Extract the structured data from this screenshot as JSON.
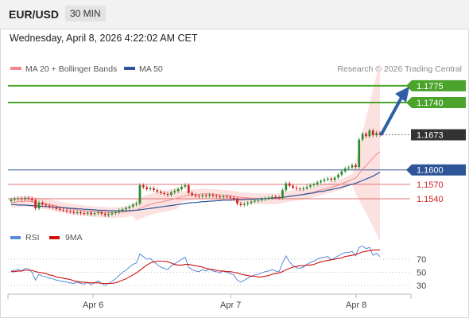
{
  "header": {
    "symbol": "EUR/USD",
    "timeframe": "30 MIN"
  },
  "datetime": "Wednesday, April 8, 2026 4:22:02 AM CET",
  "legend": {
    "ma20": {
      "label": "MA 20 + Bollinger Bands",
      "color": "#f08a8a"
    },
    "ma50": {
      "label": "MA 50",
      "color": "#2e5597"
    }
  },
  "credit": "Research © 2026 Trading Central",
  "colors": {
    "up": "#2a8a2a",
    "down": "#cc2222",
    "target": "#4aa32a",
    "pivot": "#2e5597",
    "support": "#e07070",
    "last": "#333333",
    "arrow": "#2e5fa5",
    "rsi": "#5b8ad6",
    "rsi_ma": "#d01010"
  },
  "chart_data": [
    {
      "type": "candlestick",
      "x_ticks": [
        "Apr 6",
        "Apr 7",
        "Apr 8"
      ],
      "levels": [
        {
          "value": 1.1775,
          "label": "1.1775",
          "kind": "target"
        },
        {
          "value": 1.174,
          "label": "1.1740",
          "kind": "target"
        },
        {
          "value": 1.1673,
          "label": "1.1673",
          "kind": "last"
        },
        {
          "value": 1.16,
          "label": "1.1600",
          "kind": "pivot"
        },
        {
          "value": 1.157,
          "label": "1.1570",
          "kind": "support"
        },
        {
          "value": 1.154,
          "label": "1.1540",
          "kind": "support"
        }
      ],
      "ylim": [
        1.15,
        1.1795
      ],
      "close": [
        1.1538,
        1.154,
        1.1541,
        1.1539,
        1.1542,
        1.154,
        1.1537,
        1.152,
        1.1532,
        1.1528,
        1.1526,
        1.1524,
        1.1522,
        1.1519,
        1.1517,
        1.1516,
        1.1514,
        1.1513,
        1.1511,
        1.1512,
        1.151,
        1.1509,
        1.1511,
        1.1508,
        1.151,
        1.1512,
        1.1509,
        1.1506,
        1.1508,
        1.151,
        1.1512,
        1.1516,
        1.1518,
        1.1521,
        1.1524,
        1.1528,
        1.153,
        1.1568,
        1.1564,
        1.156,
        1.1562,
        1.1558,
        1.1555,
        1.1552,
        1.155,
        1.1548,
        1.1553,
        1.1556,
        1.156,
        1.1565,
        1.1568,
        1.1552,
        1.1548,
        1.1546,
        1.1545,
        1.1547,
        1.1546,
        1.1548,
        1.1546,
        1.1545,
        1.1543,
        1.1545,
        1.1544,
        1.1542,
        1.154,
        1.153,
        1.1527,
        1.1529,
        1.1531,
        1.1534,
        1.1536,
        1.1537,
        1.1539,
        1.1541,
        1.1542,
        1.1544,
        1.1543,
        1.1542,
        1.1558,
        1.1572,
        1.1567,
        1.1563,
        1.1561,
        1.156,
        1.1562,
        1.1565,
        1.1568,
        1.157,
        1.1574,
        1.1577,
        1.158,
        1.1582,
        1.1579,
        1.1584,
        1.159,
        1.1597,
        1.1603,
        1.1605,
        1.161,
        1.1606,
        1.1663,
        1.1675,
        1.167,
        1.1682,
        1.1672,
        1.1677,
        1.1673
      ],
      "ma20": [
        1.1532,
        1.1533,
        1.1534,
        1.1534,
        1.1535,
        1.1535,
        1.1534,
        1.1532,
        1.1531,
        1.153,
        1.1529,
        1.1528,
        1.1526,
        1.1525,
        1.1523,
        1.1522,
        1.152,
        1.1519,
        1.1518,
        1.1517,
        1.1516,
        1.1515,
        1.1514,
        1.1514,
        1.1513,
        1.1513,
        1.1512,
        1.1512,
        1.1511,
        1.1511,
        1.1511,
        1.1512,
        1.1512,
        1.1513,
        1.1514,
        1.1515,
        1.1516,
        1.152,
        1.1523,
        1.1526,
        1.1528,
        1.153,
        1.1532,
        1.1533,
        1.1535,
        1.1536,
        1.1538,
        1.154,
        1.1542,
        1.1544,
        1.1546,
        1.1547,
        1.1548,
        1.1549,
        1.1549,
        1.155,
        1.155,
        1.155,
        1.1549,
        1.1549,
        1.1548,
        1.1547,
        1.1547,
        1.1546,
        1.1545,
        1.1544,
        1.1543,
        1.1542,
        1.1542,
        1.1541,
        1.1541,
        1.154,
        1.154,
        1.154,
        1.154,
        1.154,
        1.154,
        1.1541,
        1.1542,
        1.1544,
        1.1545,
        1.1546,
        1.1547,
        1.1548,
        1.1549,
        1.1551,
        1.1552,
        1.1554,
        1.1556,
        1.1558,
        1.156,
        1.1562,
        1.1564,
        1.1566,
        1.1568,
        1.1571,
        1.1574,
        1.1577,
        1.158,
        1.1583,
        1.1592,
        1.1601,
        1.1609,
        1.1617,
        1.1625,
        1.1632,
        1.1638
      ],
      "ma50": [
        1.1528,
        1.1528,
        1.1527,
        1.1527,
        1.1527,
        1.1526,
        1.1526,
        1.1525,
        1.1525,
        1.1524,
        1.1524,
        1.1523,
        1.1523,
        1.1522,
        1.1522,
        1.1521,
        1.1521,
        1.152,
        1.152,
        1.1519,
        1.1519,
        1.1518,
        1.1518,
        1.1517,
        1.1517,
        1.1516,
        1.1516,
        1.1516,
        1.1515,
        1.1515,
        1.1515,
        1.1515,
        1.1515,
        1.1515,
        1.1515,
        1.1516,
        1.1516,
        1.1517,
        1.1518,
        1.1519,
        1.152,
        1.1521,
        1.1522,
        1.1523,
        1.1524,
        1.1525,
        1.1526,
        1.1527,
        1.1528,
        1.1529,
        1.153,
        1.1531,
        1.1532,
        1.1532,
        1.1533,
        1.1534,
        1.1534,
        1.1535,
        1.1535,
        1.1536,
        1.1536,
        1.1537,
        1.1537,
        1.1537,
        1.1538,
        1.1538,
        1.1538,
        1.1538,
        1.1539,
        1.1539,
        1.1539,
        1.154,
        1.154,
        1.154,
        1.1541,
        1.1541,
        1.1542,
        1.1542,
        1.1543,
        1.1544,
        1.1545,
        1.1546,
        1.1547,
        1.1548,
        1.1549,
        1.155,
        1.1551,
        1.1552,
        1.1554,
        1.1555,
        1.1556,
        1.1558,
        1.1559,
        1.1561,
        1.1562,
        1.1564,
        1.1566,
        1.1568,
        1.157,
        1.1572,
        1.1575,
        1.1578,
        1.1581,
        1.1584,
        1.1587,
        1.1591,
        1.1595
      ]
    },
    {
      "type": "line",
      "legend": [
        {
          "name": "RSI",
          "color": "#5b8ad6"
        },
        {
          "name": "9MA",
          "color": "#d01010"
        }
      ],
      "ylim": [
        15,
        95
      ],
      "y_ticks": [
        70,
        50,
        30
      ],
      "rsi": [
        52,
        53,
        54,
        52,
        56,
        55,
        50,
        38,
        47,
        44,
        43,
        41,
        40,
        38,
        37,
        36,
        35,
        34,
        33,
        35,
        33,
        32,
        35,
        31,
        34,
        37,
        33,
        30,
        33,
        36,
        40,
        45,
        50,
        53,
        58,
        62,
        64,
        78,
        74,
        70,
        71,
        66,
        62,
        58,
        56,
        54,
        60,
        63,
        66,
        70,
        73,
        58,
        54,
        52,
        51,
        54,
        52,
        55,
        52,
        51,
        49,
        52,
        50,
        48,
        46,
        38,
        35,
        38,
        41,
        44,
        46,
        47,
        49,
        51,
        52,
        54,
        52,
        51,
        64,
        75,
        66,
        60,
        57,
        56,
        58,
        62,
        65,
        67,
        70,
        72,
        73,
        74,
        69,
        72,
        75,
        78,
        80,
        80,
        82,
        75,
        88,
        90,
        86,
        88,
        76,
        79,
        74
      ],
      "rsi_ma": [
        51,
        51,
        52,
        52,
        53,
        53,
        53,
        51,
        50,
        49,
        48,
        46,
        45,
        43,
        42,
        41,
        40,
        39,
        37,
        36,
        35,
        35,
        34,
        34,
        34,
        34,
        33,
        33,
        33,
        33,
        34,
        36,
        38,
        40,
        43,
        46,
        49,
        53,
        57,
        61,
        64,
        66,
        67,
        67,
        67,
        66,
        64,
        62,
        61,
        61,
        62,
        62,
        61,
        60,
        59,
        58,
        56,
        55,
        54,
        53,
        52,
        52,
        51,
        51,
        50,
        49,
        47,
        46,
        45,
        44,
        44,
        43,
        43,
        44,
        45,
        47,
        48,
        49,
        51,
        54,
        56,
        58,
        59,
        60,
        60,
        61,
        61,
        62,
        64,
        66,
        67,
        68,
        69,
        70,
        71,
        72,
        74,
        75,
        76,
        77,
        79,
        81,
        82,
        83,
        84,
        84,
        84
      ]
    }
  ]
}
